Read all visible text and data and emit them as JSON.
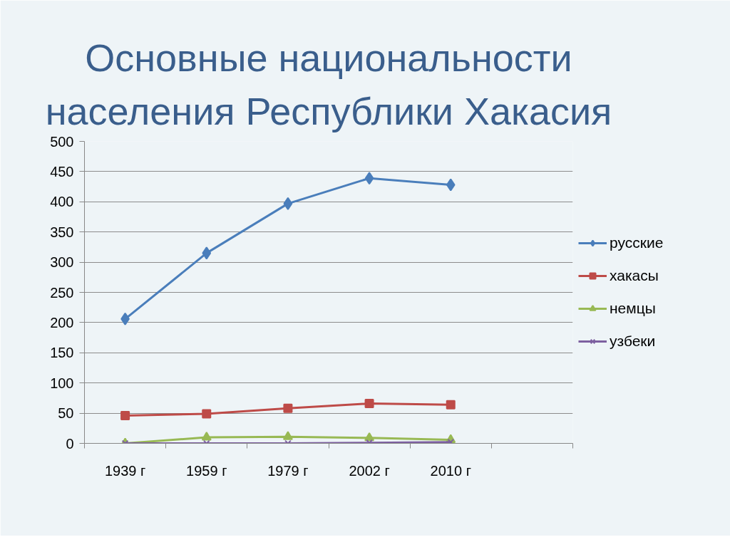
{
  "chart_data": {
    "type": "line",
    "title": "Основные национальности населения Республики Хакасия",
    "categories": [
      "1939 г",
      "1959 г",
      "1979 г",
      "2002 г",
      "2010 г",
      null
    ],
    "series": [
      {
        "name": "русские",
        "color": "#4a7ebb",
        "marker": "diamond",
        "values": [
          206,
          315,
          397,
          439,
          428,
          null
        ]
      },
      {
        "name": "хакасы",
        "color": "#be4b48",
        "marker": "square",
        "values": [
          46,
          49,
          58,
          66,
          64,
          null
        ]
      },
      {
        "name": "немцы",
        "color": "#98b954",
        "marker": "triangle",
        "values": [
          0,
          10,
          11,
          9,
          6,
          null
        ]
      },
      {
        "name": "узбеки",
        "color": "#7d60a0",
        "marker": "cross",
        "values": [
          0,
          0,
          0,
          1,
          2,
          null
        ]
      }
    ],
    "ylim": [
      0,
      500
    ],
    "yticks": [
      0,
      50,
      100,
      150,
      200,
      250,
      300,
      350,
      400,
      450,
      500
    ],
    "grid": "y",
    "legend": "right"
  }
}
